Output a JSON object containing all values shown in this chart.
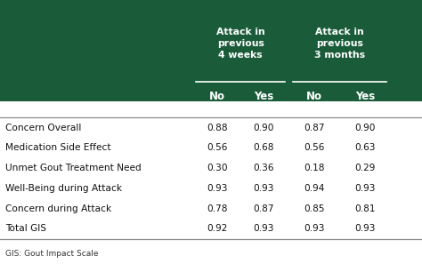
{
  "header_bg_color": "#1a5c3a",
  "header_text_color": "#ffffff",
  "body_bg_color": "#ffffff",
  "body_text_color": "#111111",
  "footer_text_color": "#333333",
  "col_group_headers": [
    "Attack in\nprevious\n4 weeks",
    "Attack in\nprevious\n3 months"
  ],
  "col_subheaders": [
    "No",
    "Yes",
    "No",
    "Yes"
  ],
  "row_labels": [
    "Concern Overall",
    "Medication Side Effect",
    "Unmet Gout Treatment Need",
    "Well-Being during Attack",
    "Concern during Attack",
    "Total GIS"
  ],
  "data": [
    [
      "0.88",
      "0.90",
      "0.87",
      "0.90"
    ],
    [
      "0.56",
      "0.68",
      "0.56",
      "0.63"
    ],
    [
      "0.30",
      "0.36",
      "0.18",
      "0.29"
    ],
    [
      "0.93",
      "0.93",
      "0.94",
      "0.93"
    ],
    [
      "0.78",
      "0.87",
      "0.85",
      "0.81"
    ],
    [
      "0.92",
      "0.93",
      "0.93",
      "0.93"
    ]
  ],
  "footer_text": "GIS: Gout Impact Scale",
  "figsize": [
    4.74,
    2.97
  ],
  "dpi": 100
}
